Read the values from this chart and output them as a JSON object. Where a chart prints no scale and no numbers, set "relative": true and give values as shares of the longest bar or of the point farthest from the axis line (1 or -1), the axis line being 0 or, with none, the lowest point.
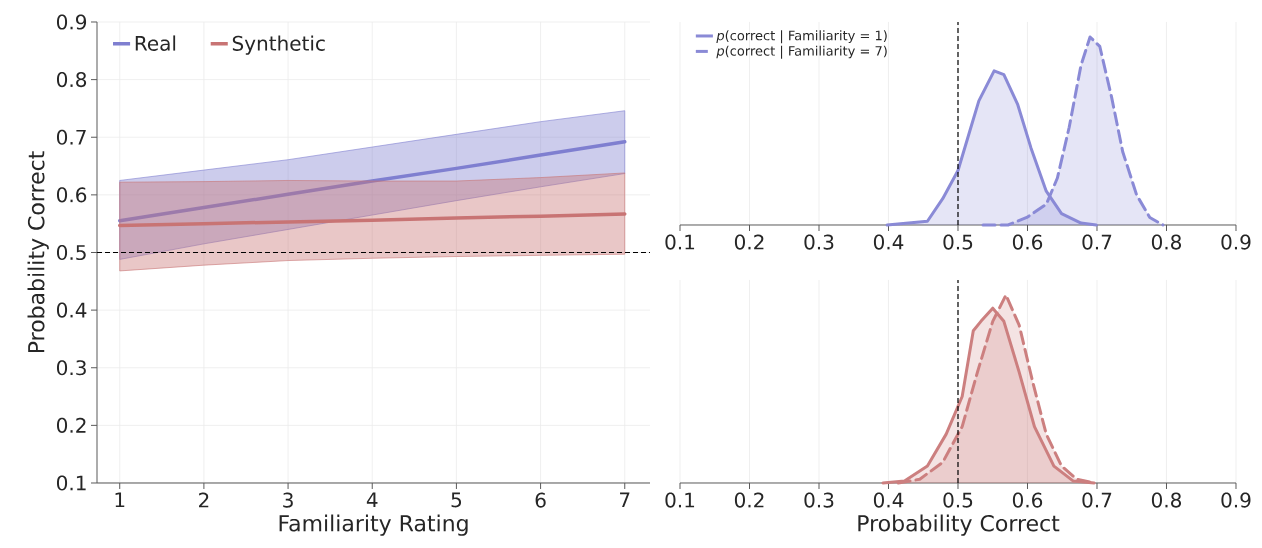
{
  "chart_data": [
    {
      "type": "line",
      "xlabel": "Familiarity Rating",
      "ylabel": "Probability Correct",
      "xlim": [
        0.73,
        7.3
      ],
      "ylim": [
        0.1,
        0.9
      ],
      "xticks": [
        1,
        2,
        3,
        4,
        5,
        6,
        7
      ],
      "yticks": [
        0.1,
        0.2,
        0.3,
        0.4,
        0.5,
        0.6,
        0.7,
        0.8,
        0.9
      ],
      "grid": true,
      "legend": "top left",
      "ref_lines": [
        {
          "axis": "y",
          "value": 0.5,
          "color": "#000000",
          "line_style": "dashed"
        }
      ],
      "series": [
        {
          "name": "Real",
          "color": "#7f7fd0",
          "x": [
            1,
            2,
            3,
            4,
            5,
            6,
            7
          ],
          "values": [
            0.555,
            0.578,
            0.601,
            0.624,
            0.646,
            0.669,
            0.692
          ],
          "lower": [
            0.488,
            0.515,
            0.54,
            0.565,
            0.59,
            0.614,
            0.637
          ],
          "upper": [
            0.625,
            0.643,
            0.661,
            0.683,
            0.705,
            0.727,
            0.746
          ]
        },
        {
          "name": "Synthetic",
          "color": "#c87474",
          "x": [
            1,
            2,
            3,
            4,
            5,
            6,
            7
          ],
          "values": [
            0.547,
            0.55,
            0.553,
            0.556,
            0.56,
            0.563,
            0.567
          ],
          "lower": [
            0.468,
            0.478,
            0.486,
            0.49,
            0.493,
            0.495,
            0.497
          ],
          "upper": [
            0.622,
            0.623,
            0.625,
            0.624,
            0.624,
            0.63,
            0.638
          ]
        }
      ]
    },
    {
      "type": "area",
      "relative": true,
      "xlim": [
        0.1,
        0.9
      ],
      "xticks": [
        0.1,
        0.2,
        0.3,
        0.4,
        0.5,
        0.6,
        0.7,
        0.8,
        0.9
      ],
      "grid": "x",
      "tick_labels": "x",
      "legend": "top left",
      "ref_lines": [
        {
          "axis": "x",
          "value": 0.5,
          "color": "#000000",
          "line_style": "dashed"
        }
      ],
      "series": [
        {
          "name": "*p*(correct | Familiarity = 1)",
          "color": "#8a8ad6",
          "line_style": "solid",
          "x": [
            0.398,
            0.456,
            0.478,
            0.5,
            0.517,
            0.53,
            0.552,
            0.566,
            0.586,
            0.605,
            0.627,
            0.649,
            0.677,
            0.699
          ],
          "values": [
            0,
            0.02,
            0.14,
            0.29,
            0.5,
            0.66,
            0.82,
            0.8,
            0.64,
            0.41,
            0.18,
            0.06,
            0.01,
            0
          ]
        },
        {
          "name": "*p*(correct | Familiarity = 7)",
          "color": "#8a8ad6",
          "line_style": "dashed",
          "x": [
            0.536,
            0.572,
            0.599,
            0.627,
            0.643,
            0.66,
            0.677,
            0.69,
            0.704,
            0.721,
            0.737,
            0.757,
            0.776,
            0.795
          ],
          "values": [
            0,
            0,
            0.04,
            0.11,
            0.25,
            0.52,
            0.85,
            1,
            0.95,
            0.68,
            0.39,
            0.16,
            0.04,
            0
          ]
        }
      ]
    },
    {
      "type": "area",
      "relative": true,
      "xlabel": "Probability Correct",
      "xlim": [
        0.1,
        0.9
      ],
      "xticks": [
        0.1,
        0.2,
        0.3,
        0.4,
        0.5,
        0.6,
        0.7,
        0.8,
        0.9
      ],
      "grid": "x",
      "tick_labels": "x",
      "ref_lines": [
        {
          "axis": "x",
          "value": 0.5,
          "color": "#000000",
          "line_style": "dashed"
        }
      ],
      "series": [
        {
          "color": "#cc7f7f",
          "line_style": "solid",
          "x": [
            0.392,
            0.423,
            0.456,
            0.483,
            0.506,
            0.522,
            0.533,
            0.55,
            0.566,
            0.588,
            0.61,
            0.638,
            0.666,
            0.696
          ],
          "values": [
            0,
            0.01,
            0.09,
            0.26,
            0.46,
            0.81,
            0.86,
            0.93,
            0.86,
            0.59,
            0.3,
            0.09,
            0.01,
            0
          ]
        },
        {
          "color": "#cc7f7f",
          "line_style": "dashed",
          "x": [
            0.414,
            0.445,
            0.478,
            0.506,
            0.528,
            0.55,
            0.569,
            0.588,
            0.608,
            0.627,
            0.649,
            0.671,
            0.696
          ],
          "values": [
            0,
            0.02,
            0.11,
            0.3,
            0.59,
            0.86,
            1,
            0.84,
            0.53,
            0.26,
            0.09,
            0.02,
            0
          ]
        }
      ]
    }
  ]
}
